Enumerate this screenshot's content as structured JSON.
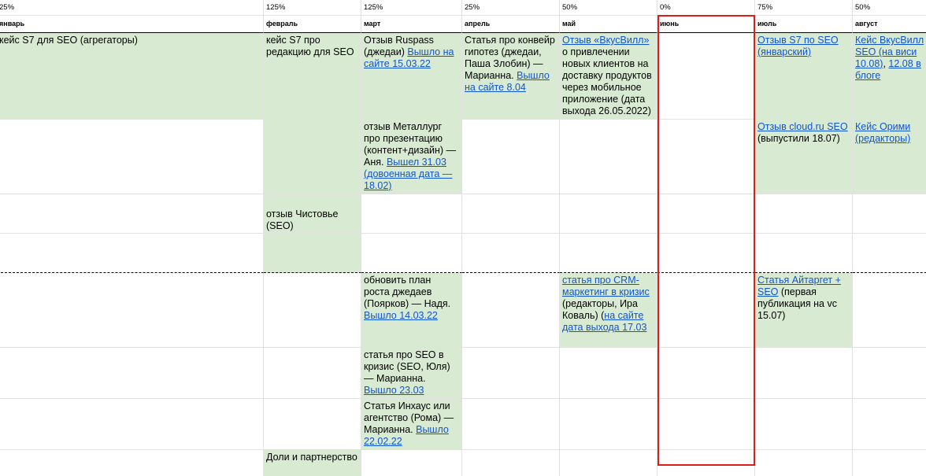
{
  "header": {
    "percents": [
      "25%",
      "125%",
      "125%",
      "25%",
      "50%",
      "0%",
      "75%",
      "50%"
    ],
    "months": [
      "январь",
      "февраль",
      "март",
      "апрель",
      "май",
      "июнь",
      "июль",
      "август"
    ]
  },
  "rows": [
    {
      "cells": [
        {
          "fill": "#d9ead3",
          "content": [
            {
              "text": "кейс S7 для SEO (агрегаторы)"
            }
          ]
        },
        {
          "fill": "#d9ead3",
          "content": [
            {
              "text": "кейс S7 про редакцию для SEO"
            }
          ]
        },
        {
          "fill": "#d9ead3",
          "content": [
            {
              "text": "Отзыв Ruspass (джедаи) "
            },
            {
              "link": "Вышло на сайте 15.03.22"
            }
          ]
        },
        {
          "fill": "#d9ead3",
          "content": [
            {
              "text": "Статья про конвейр гипотез (джедаи, Паша Злобин) — Марианна. "
            },
            {
              "link": "Вышло на сайте 8.04"
            }
          ]
        },
        {
          "fill": "#d9ead3",
          "content": [
            {
              "link": "Отзыв «ВкусВилл»"
            },
            {
              "text": " о привлечении новых клиентов на доставку продуктов через мобильное приложение (дата выхода 26.05.2022)"
            }
          ]
        },
        null,
        {
          "fill": "#d9ead3",
          "content": [
            {
              "link": "Отзыв S7 по SEO (январский)"
            }
          ]
        },
        {
          "fill": "#d9ead3",
          "content": [
            {
              "link": "Кейс ВкусВилл SEO (на виси 10.08)"
            },
            {
              "text": ", "
            },
            {
              "link": "12.08 в блоге"
            }
          ]
        }
      ]
    },
    {
      "cells": [
        null,
        {
          "fill": "#d9ead3"
        },
        {
          "fill": "#d9ead3",
          "content": [
            {
              "text": "отзыв Металлург про презентацию (контент+дизайн) — Аня. "
            },
            {
              "link": "Вышел 31.03 (довоенная дата — 18.02)"
            }
          ]
        },
        null,
        null,
        null,
        {
          "fill": "#d9ead3",
          "content": [
            {
              "link": "Отзыв cloud.ru SEO"
            },
            {
              "text": " (выпустили 18.07)"
            }
          ]
        },
        {
          "fill": "#d9ead3",
          "content": [
            {
              "link": "Кейс Орими (редакторы)"
            }
          ]
        }
      ]
    },
    {
      "cells": [
        null,
        {
          "fill": "#d9ead3",
          "content": [
            {
              "text": "отзыв Чистовье (SEO)"
            }
          ]
        },
        null,
        null,
        null,
        null,
        null,
        null
      ]
    },
    {
      "cells": [
        null,
        {
          "fill": "#d9ead3"
        },
        null,
        null,
        null,
        null,
        null,
        null
      ]
    },
    {
      "cells": [
        null,
        null,
        {
          "fill": "#d9ead3",
          "content": [
            {
              "text": "обновить план роста джедаев (Поярков) — Надя. "
            },
            {
              "link": "Вышло 14.03.22"
            }
          ]
        },
        null,
        {
          "fill": "#d9ead3",
          "content": [
            {
              "link": "статья про CRM-маркетинг в кризис"
            },
            {
              "text": " (редакторы, Ира Коваль) ("
            },
            {
              "link": "на сайте дата выхода 17.03"
            }
          ]
        },
        null,
        {
          "fill": "#d9ead3",
          "content": [
            {
              "link": "Статья Айтаргет + SEO"
            },
            {
              "text": " (первая публикация на vc 15.07)"
            }
          ]
        },
        null
      ]
    },
    {
      "cells": [
        null,
        null,
        {
          "fill": "#d9ead3",
          "content": [
            {
              "text": "статья про SEO в кризис (SEO, Юля) — Марианна. "
            },
            {
              "link": "Вышло 23.03"
            }
          ]
        },
        null,
        null,
        null,
        null,
        null
      ]
    },
    {
      "cells": [
        null,
        null,
        {
          "fill": "#d9ead3",
          "content": [
            {
              "text": "Статья Инхаус или агентство (Рома) — Марианна. "
            },
            {
              "link": "Вышло 22.02.22"
            }
          ]
        },
        null,
        null,
        null,
        null,
        null
      ]
    },
    {
      "cells": [
        null,
        {
          "fill": "#d9ead3",
          "content": [
            {
              "text": "Доли и партнерство"
            }
          ]
        },
        null,
        null,
        null,
        null,
        null,
        null
      ]
    }
  ]
}
